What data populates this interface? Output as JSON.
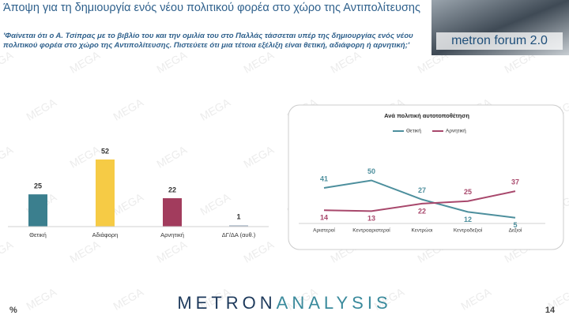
{
  "header": {
    "title": "Άποψη για τη δημιουργία ενός νέου πολιτικού φορέα στο χώρο της Αντιπολίτευσης",
    "question": "'Φαίνεται ότι ο Α. Τσίπρας με το βιβλίο του και την ομιλία του στο Παλλάς τάσσεται υπέρ της δημιουργίας ενός νέου πολιτικού φορέα στο χώρο της Αντιπολίτευσης. Πιστεύετε ότι μια τέτοια εξέλιξη είναι θετική, αδιάφορη ή αρνητική;'",
    "logo": "metron forum 2.0"
  },
  "watermark": "MEGA",
  "footer": {
    "unit": "%",
    "brand_left": "METRON",
    "brand_right": "ANALYSIS",
    "page": "14"
  },
  "chart_data": [
    {
      "type": "bar",
      "categories": [
        "Θετική",
        "Αδιάφορη",
        "Αρνητική",
        "ΔΓ/ΔΑ (αυθ.)"
      ],
      "values": [
        25,
        52,
        22,
        1
      ],
      "colors": [
        "#3b7f8e",
        "#f6cb45",
        "#a23c5d",
        "#a3b1c2"
      ]
    },
    {
      "type": "line",
      "title": "Ανά πολιτική αυτοτοποθέτηση",
      "categories": [
        "Αριστεροί",
        "Κεντροαριστεροί",
        "Κεντρώοι",
        "Κεντροδεξιοί",
        "Δεξιοί"
      ],
      "series": [
        {
          "name": "Θετική",
          "color": "#4d8f9d",
          "values": [
            41,
            50,
            27,
            12,
            5
          ]
        },
        {
          "name": "Αρνητική",
          "color": "#a8486c",
          "values": [
            14,
            13,
            22,
            25,
            37
          ]
        }
      ]
    }
  ]
}
